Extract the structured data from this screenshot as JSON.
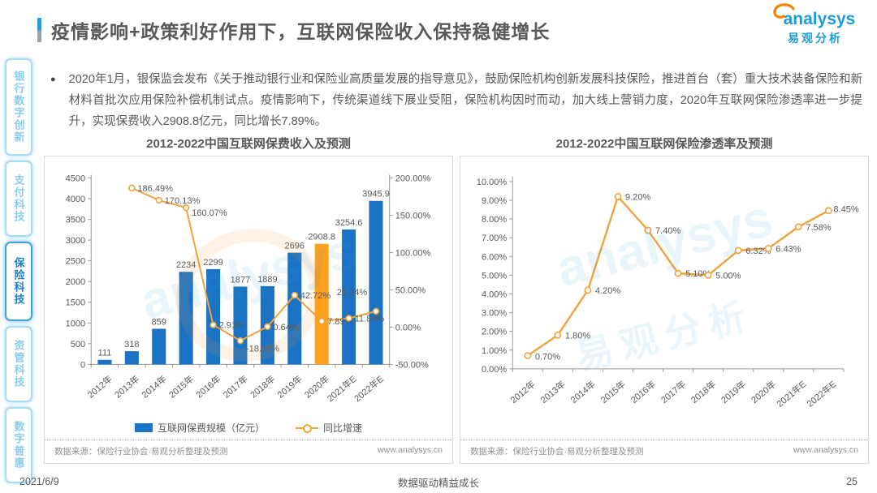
{
  "page": {
    "title": "疫情影响+政策利好作用下，互联网保险收入保持稳健增长",
    "date": "2021/6/9",
    "footer_slogan": "数据驱动精益成长",
    "page_number": "25"
  },
  "logo": {
    "brand": "analysys",
    "brand_cn": "易观分析"
  },
  "sidebar": {
    "items": [
      {
        "label": "银行数字创新",
        "active": false
      },
      {
        "label": "支付科技",
        "active": false
      },
      {
        "label": "保险科技",
        "active": true
      },
      {
        "label": "资管科技",
        "active": false
      },
      {
        "label": "数字普惠",
        "active": false
      }
    ]
  },
  "bullet": {
    "text": "2020年1月，银保监会发布《关于推动银行业和保险业高质量发展的指导意见》，鼓励保险机构创新发展科技保险，推进首台（套）重大技术装备保险和新材料首批次应用保险补偿机制试点。疫情影响下，传统渠道线下展业受阻，保险机构因时而动，加大线上营销力度，2020年互联网保险渗透率进一步提升，实现保费收入2908.8亿元，同比增长7.89%。"
  },
  "charts": {
    "source_note": "数据来源：保险行业协会·易观分析整理及预测",
    "website": "www.analysys.cn"
  },
  "colors": {
    "bar_blue": "#1B73C5",
    "highlight_orange": "#FFA01E",
    "line_orange": "#F0A33C",
    "axis_gray": "#9B9B9B",
    "label_gray": "#595959",
    "accent_blue": "#2E9BD6"
  },
  "chart_data": [
    {
      "type": "bar",
      "title": "2012-2022中国互联网保费收入及预测",
      "categories": [
        "2012年",
        "2013年",
        "2014年",
        "2015年",
        "2016年",
        "2017年",
        "2018年",
        "2019年",
        "2020年",
        "2021年E",
        "2022年E"
      ],
      "series": [
        {
          "name": "互联网保费规模（亿元）",
          "type": "bar",
          "values": [
            111,
            318,
            859,
            2234,
            2299,
            1877,
            1889,
            2696,
            2908.8,
            3254.6,
            3945.9
          ],
          "highlight_index": 8
        },
        {
          "name": "同比增速",
          "type": "line",
          "axis": "right",
          "values": [
            null,
            186.49,
            170.13,
            160.07,
            2.91,
            -18.36,
            0.64,
            42.72,
            7.89,
            11.89,
            21.24
          ],
          "labels": [
            "",
            "186.49%",
            "170.13%",
            "160.07%",
            "2.91%",
            "-18.36%",
            "0.64%",
            "42.72%",
            "7.89%",
            "11.89%",
            "21.24%"
          ]
        }
      ],
      "left_axis": {
        "min": 0,
        "max": 4500,
        "step": 500
      },
      "right_axis": {
        "min": -50,
        "max": 200,
        "step": 50,
        "format": "percent2"
      },
      "grid": false,
      "legend_position": "bottom"
    },
    {
      "type": "line",
      "title": "2012-2022中国互联网保险渗透率及预测",
      "categories": [
        "2012年",
        "2013年",
        "2014年",
        "2015年",
        "2016年",
        "2017年",
        "2018年",
        "2019年",
        "2020年",
        "2021年E",
        "2022年E"
      ],
      "values": [
        0.7,
        1.8,
        4.2,
        9.2,
        7.4,
        5.1,
        5.0,
        6.32,
        6.43,
        7.58,
        8.45
      ],
      "labels": [
        "0.70%",
        "1.80%",
        "4.20%",
        "9.20%",
        "7.40%",
        "5.10%",
        "5.00%",
        "6.32%",
        "6.43%",
        "7.58%",
        "8.45%"
      ],
      "ylabel": "",
      "xlabel": "",
      "ylim": [
        0,
        10
      ],
      "y_step": 1,
      "y_format": "percent2",
      "grid": false,
      "legend_position": "none"
    }
  ]
}
